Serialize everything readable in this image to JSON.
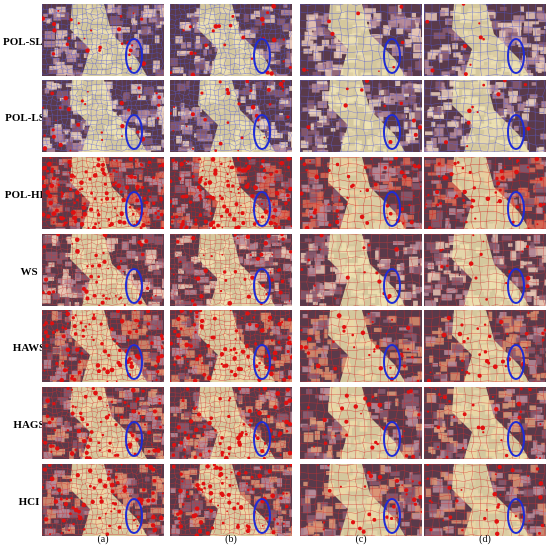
{
  "rows": [
    {
      "label": "POL-SLIC",
      "tint": "#e7c7b6",
      "seg": "#4f57d8",
      "red": 0.1
    },
    {
      "label": "POL-LSC",
      "tint": "#ead0bd",
      "seg": "#5a5fd8",
      "red": 0.12
    },
    {
      "label": "POL-HLT",
      "tint": "#d86a55",
      "seg": "#d51c1c",
      "red": 0.55
    },
    {
      "label": "WS",
      "tint": "#e7c7b4",
      "seg": "#cf3b3b",
      "red": 0.18
    },
    {
      "label": "HAWS",
      "tint": "#d98f6e",
      "seg": "#d62b2b",
      "red": 0.38
    },
    {
      "label": "HAGS",
      "tint": "#dd9f7d",
      "seg": "#d62f2f",
      "red": 0.32
    },
    {
      "label": "HCI",
      "tint": "#db9575",
      "seg": "#d43131",
      "red": 0.34
    }
  ],
  "columns": [
    "(a)",
    "(b)",
    "(c)",
    "(d)"
  ],
  "colors": {
    "ellipse": "#1f2bd6",
    "bright_region": "#efe7b0",
    "dark_field": "#5a3a4a"
  }
}
